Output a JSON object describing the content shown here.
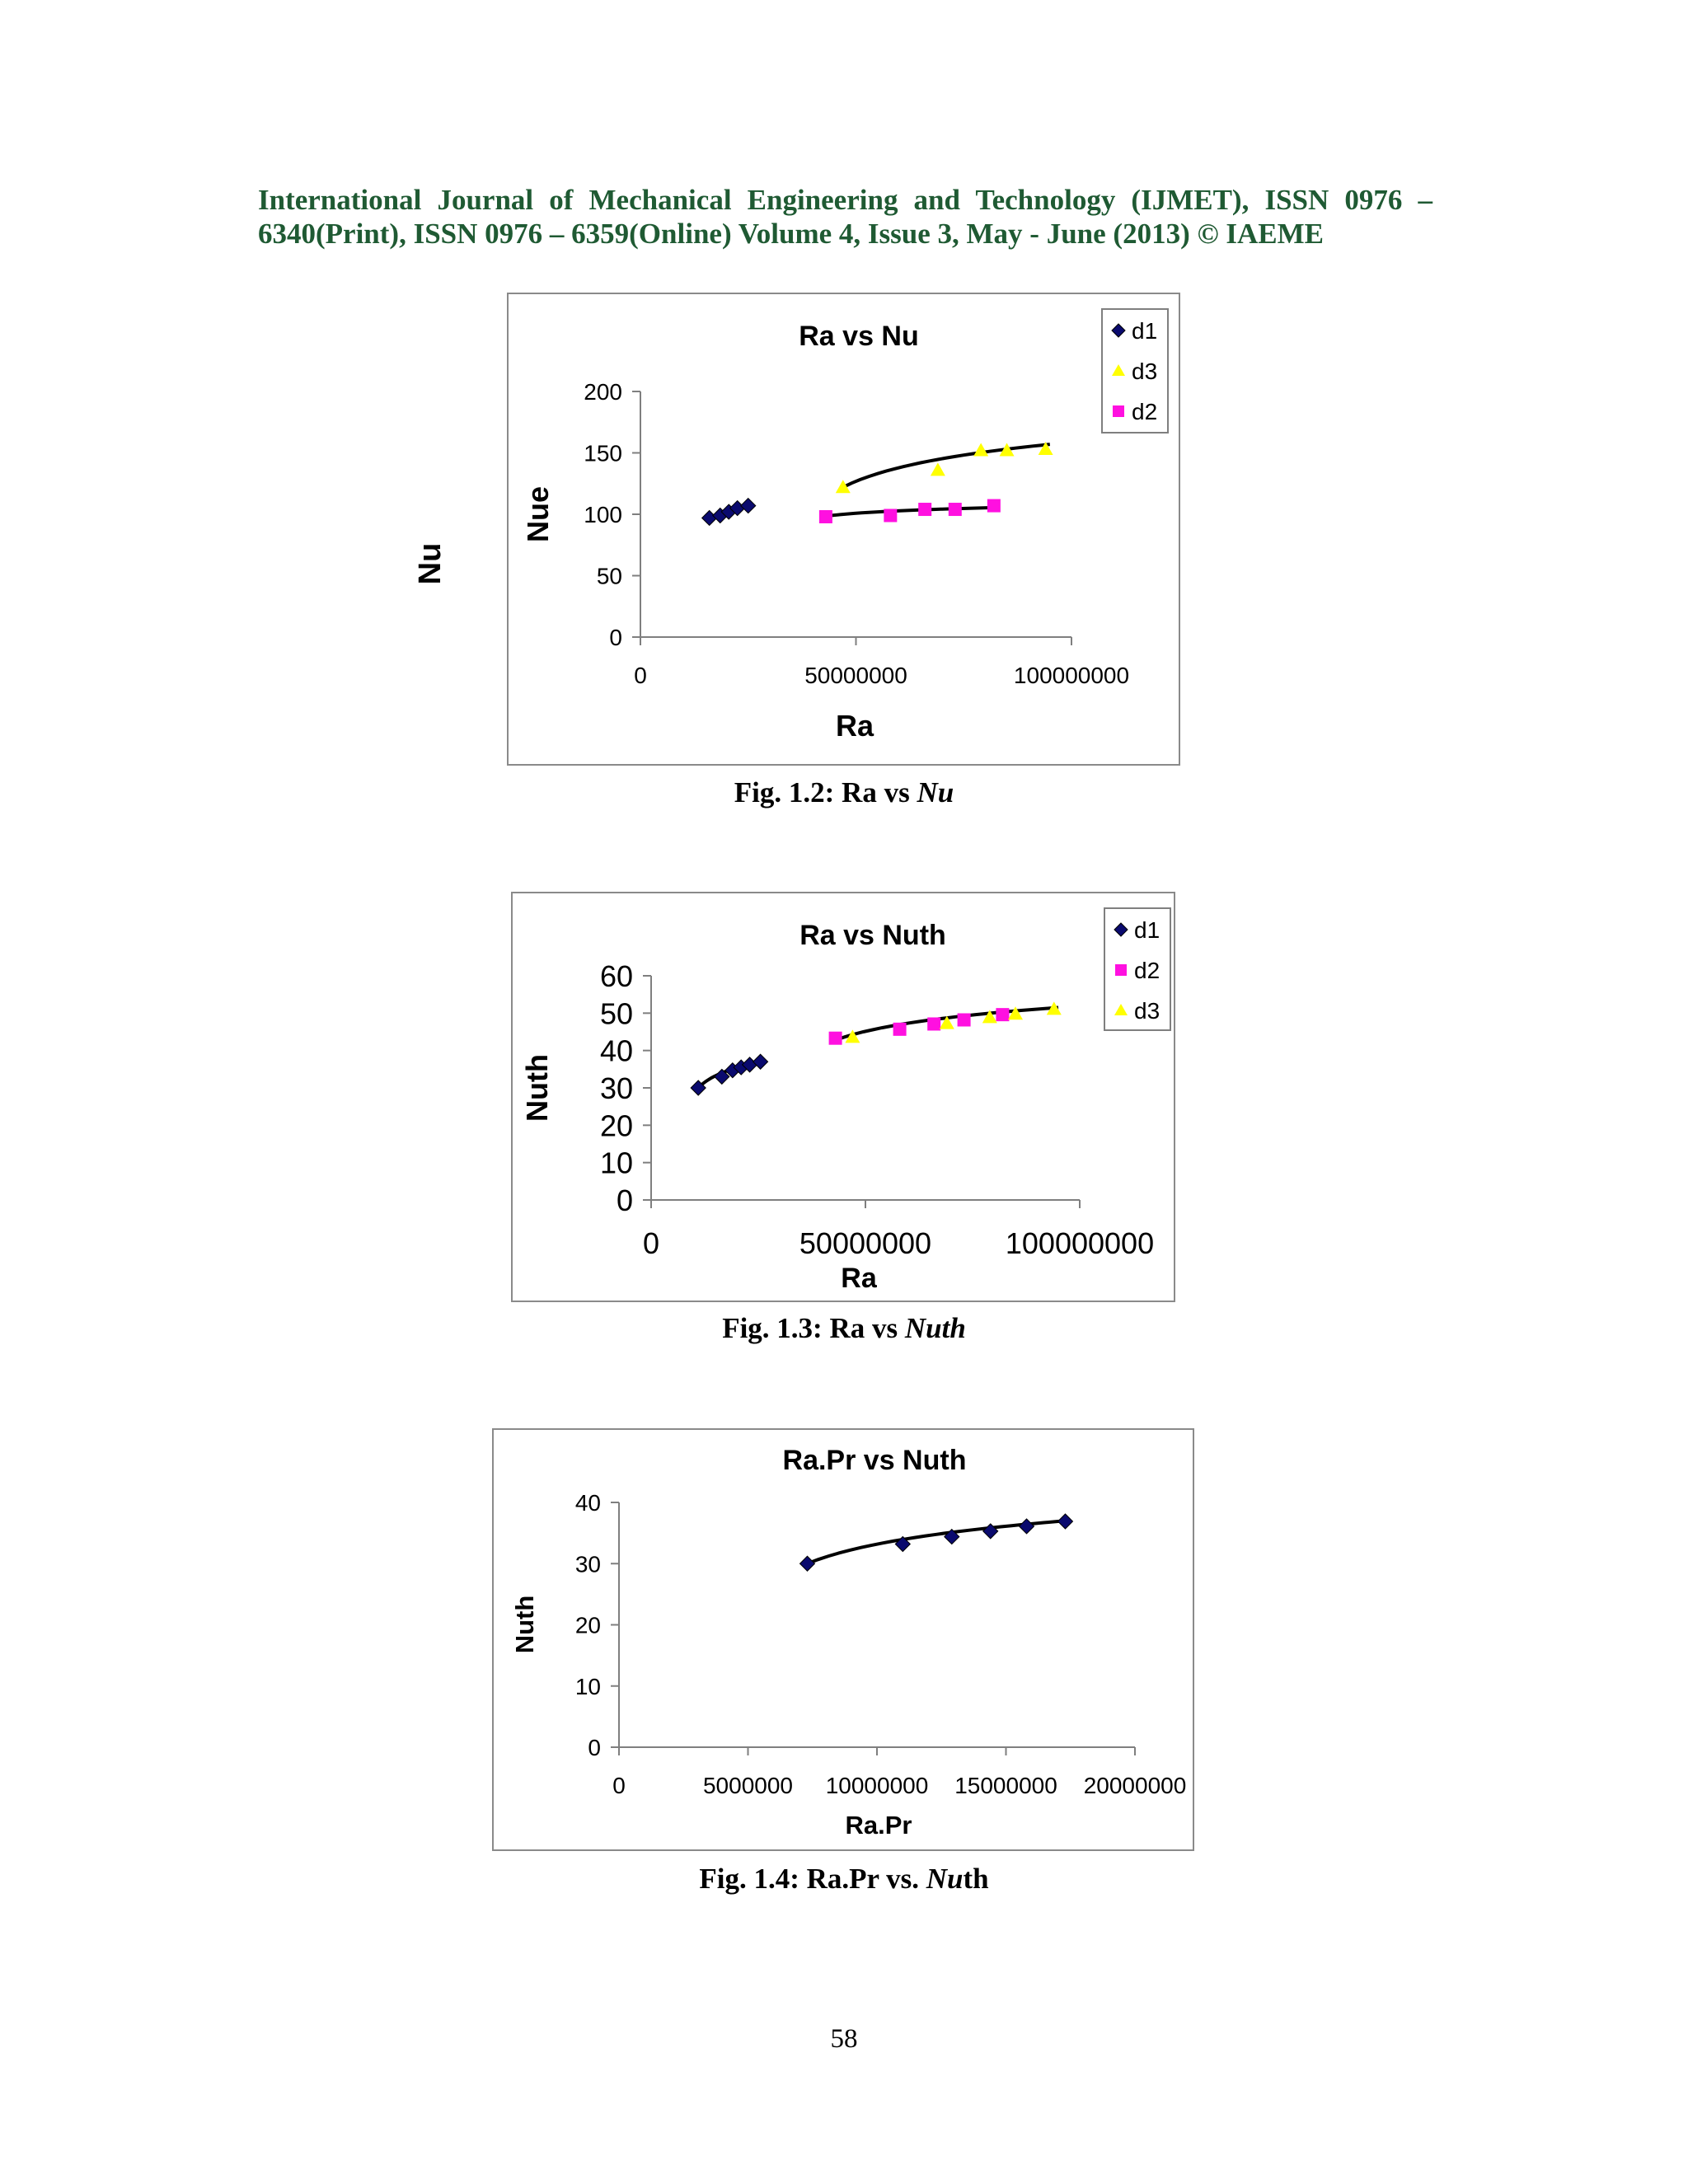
{
  "header": {
    "line1": "International Journal of Mechanical Engineering and Technology (IJMET), ISSN 0976 –",
    "line2": "6340(Print), ISSN 0976 – 6359(Online) Volume 4, Issue 3, May - June (2013) © IAEME"
  },
  "figures": [
    {
      "caption_prefix": "Fig. 1.2: Ra vs ",
      "caption_italic": "Nu",
      "caption_suffix": "",
      "outer_label": "Nu"
    },
    {
      "caption_prefix": "Fig. 1.3:  Ra vs ",
      "caption_italic": "Nuth",
      "caption_suffix": ""
    },
    {
      "caption_prefix": "Fig. 1.4: Ra.Pr vs. ",
      "caption_italic": "Nu",
      "caption_suffix": "th"
    }
  ],
  "page_number": "58",
  "colors": {
    "d1": "#0a0a6e",
    "d2": "#ff10e0",
    "d3": "#ffff00",
    "trend": "#000000",
    "header": "#1f5a33"
  },
  "chart_data": [
    {
      "type": "scatter",
      "title": "Ra vs Nu",
      "xlabel": "Ra",
      "ylabel": "Nue",
      "xlim": [
        0,
        100000000
      ],
      "ylim": [
        0,
        200
      ],
      "xticks": [
        "0",
        "50000000",
        "100000000"
      ],
      "yticks": [
        "0",
        "50",
        "100",
        "150",
        "200"
      ],
      "legend": "top-right",
      "legend_order": [
        "d1",
        "d3",
        "d2"
      ],
      "series": [
        {
          "name": "d1",
          "marker": "diamond",
          "color": "#0a0a6e",
          "x": [
            16000000,
            18500000,
            20500000,
            22500000,
            25000000
          ],
          "y": [
            97,
            99,
            102,
            105,
            107
          ]
        },
        {
          "name": "d3",
          "marker": "triangle",
          "color": "#ffff00",
          "x": [
            47000000,
            69000000,
            79000000,
            85000000,
            94000000
          ],
          "y": [
            122,
            136,
            152,
            152,
            153
          ]
        },
        {
          "name": "d2",
          "marker": "square",
          "color": "#ff10e0",
          "x": [
            43000000,
            58000000,
            66000000,
            73000000,
            82000000
          ],
          "y": [
            98,
            99,
            104,
            104,
            107
          ]
        }
      ],
      "trendlines": [
        {
          "x": [
            16000000,
            25000000
          ],
          "y": [
            96.5,
            106
          ]
        },
        {
          "x": [
            47000000,
            95000000
          ],
          "y": [
            122,
            157
          ]
        },
        {
          "x": [
            43000000,
            83000000
          ],
          "y": [
            98.5,
            105.5
          ]
        }
      ]
    },
    {
      "type": "scatter",
      "title": "Ra vs Nuth",
      "xlabel": "Ra",
      "ylabel": "Nuth",
      "xlim": [
        0,
        100000000
      ],
      "ylim": [
        0,
        60
      ],
      "xticks": [
        "0",
        "50000000",
        "100000000"
      ],
      "yticks": [
        "0",
        "10",
        "20",
        "30",
        "40",
        "50",
        "60"
      ],
      "legend": "top-right",
      "legend_order": [
        "d1",
        "d2",
        "d3"
      ],
      "series": [
        {
          "name": "d1",
          "marker": "diamond",
          "color": "#0a0a6e",
          "x": [
            11000000,
            16500000,
            19000000,
            21000000,
            23000000,
            25500000
          ],
          "y": [
            30,
            33,
            34.7,
            35.5,
            36.2,
            37
          ]
        },
        {
          "name": "d2",
          "marker": "square",
          "color": "#ff10e0",
          "x": [
            43000000,
            58000000,
            66000000,
            73000000,
            82000000
          ],
          "y": [
            43.3,
            45.7,
            47.1,
            48.2,
            49.6
          ]
        },
        {
          "name": "d3",
          "marker": "triangle",
          "color": "#ffff00",
          "x": [
            47000000,
            69000000,
            79000000,
            85000000,
            94000000
          ],
          "y": [
            43.6,
            47.3,
            48.9,
            49.8,
            51.1
          ]
        }
      ],
      "trendlines": [
        {
          "x": [
            11000000,
            25500000
          ],
          "y": [
            30,
            37
          ]
        },
        {
          "x": [
            43000000,
            95000000
          ],
          "y": [
            42.8,
            51.5
          ]
        }
      ]
    },
    {
      "type": "scatter",
      "title": "Ra.Pr vs Nuth",
      "xlabel": "Ra.Pr",
      "ylabel": "Nuth",
      "xlim": [
        0,
        20000000
      ],
      "ylim": [
        0,
        40
      ],
      "xticks": [
        "0",
        "5000000",
        "10000000",
        "15000000",
        "20000000"
      ],
      "yticks": [
        "0",
        "10",
        "20",
        "30",
        "40"
      ],
      "series": [
        {
          "marker": "diamond",
          "color": "#0a0a6e",
          "x": [
            7300000,
            11000000,
            12900000,
            14400000,
            15800000,
            17300000
          ],
          "y": [
            30,
            33.2,
            34.4,
            35.3,
            36.1,
            36.9
          ]
        }
      ],
      "trendlines": [
        {
          "x": [
            7300000,
            17300000
          ],
          "y": [
            30,
            37
          ]
        }
      ]
    }
  ]
}
